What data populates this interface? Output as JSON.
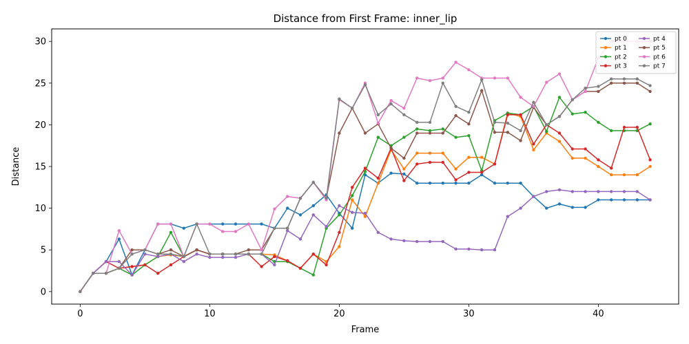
{
  "chart_data": {
    "type": "line",
    "title": "Distance from First Frame: inner_lip",
    "xlabel": "Frame",
    "ylabel": "Distance",
    "xlim": [
      -2.2,
      46.2
    ],
    "ylim": [
      -1.5,
      31.5
    ],
    "xticks": [
      0,
      10,
      20,
      30,
      40
    ],
    "yticks": [
      0,
      5,
      10,
      15,
      20,
      25,
      30
    ],
    "grid": false,
    "legend": {
      "position": "top-right",
      "columns": 2
    },
    "x": [
      0,
      1,
      2,
      3,
      4,
      5,
      6,
      7,
      8,
      9,
      10,
      11,
      12,
      13,
      14,
      15,
      16,
      17,
      18,
      19,
      20,
      21,
      22,
      23,
      24,
      25,
      26,
      27,
      28,
      29,
      30,
      31,
      32,
      33,
      34,
      35,
      36,
      37,
      38,
      39,
      40,
      41,
      42,
      43,
      44
    ],
    "series": [
      {
        "name": "pt 0",
        "color": "#1f77b4",
        "values": [
          0,
          2.2,
          3.6,
          6.3,
          2.0,
          5.0,
          8.1,
          8.1,
          7.6,
          8.1,
          8.1,
          8.1,
          8.1,
          8.1,
          8.1,
          7.6,
          10.0,
          9.2,
          10.3,
          11.6,
          9.4,
          7.6,
          14.0,
          13.0,
          14.2,
          14.1,
          13.0,
          13.0,
          13.0,
          13.0,
          13.0,
          14.0,
          13.0,
          13.0,
          13.0,
          11.4,
          10.0,
          10.5,
          10.1,
          10.1,
          11.0,
          11.0,
          11.0,
          11.0,
          11.0
        ]
      },
      {
        "name": "pt 1",
        "color": "#ff7f0e",
        "values": [
          0,
          2.2,
          2.2,
          2.8,
          3.0,
          3.2,
          4.2,
          4.4,
          4.2,
          5.0,
          4.5,
          4.5,
          4.5,
          4.5,
          4.5,
          4.4,
          3.7,
          2.8,
          4.5,
          3.6,
          5.4,
          11.0,
          9.0,
          13.0,
          17.0,
          14.7,
          16.6,
          16.6,
          16.6,
          14.7,
          16.1,
          16.1,
          15.3,
          21.4,
          21.0,
          17.0,
          19.0,
          18.0,
          16.0,
          16.0,
          15.0,
          14.0,
          14.0,
          14.0,
          15.0
        ]
      },
      {
        "name": "pt 2",
        "color": "#2ca02c",
        "values": [
          0,
          2.2,
          2.2,
          2.8,
          2.0,
          3.2,
          4.2,
          7.1,
          4.2,
          5.0,
          4.5,
          4.5,
          4.5,
          4.5,
          4.5,
          3.6,
          3.6,
          2.8,
          2.0,
          7.6,
          9.2,
          11.5,
          14.4,
          18.5,
          17.5,
          18.5,
          19.5,
          19.3,
          19.5,
          18.5,
          18.7,
          14.5,
          20.5,
          21.4,
          21.2,
          22.2,
          19.2,
          23.3,
          21.3,
          21.5,
          20.3,
          19.3,
          19.3,
          19.3,
          20.1
        ]
      },
      {
        "name": "pt 3",
        "color": "#d62728",
        "values": [
          0,
          2.2,
          3.6,
          2.8,
          3.0,
          3.2,
          2.2,
          3.2,
          4.2,
          5.0,
          4.5,
          4.5,
          4.5,
          4.5,
          3.0,
          4.2,
          3.7,
          2.8,
          4.5,
          3.2,
          7.1,
          12.5,
          14.8,
          13.6,
          17.2,
          13.3,
          15.3,
          15.5,
          15.5,
          13.4,
          14.3,
          14.3,
          15.3,
          21.2,
          21.2,
          17.7,
          20.0,
          19.0,
          17.1,
          17.1,
          15.8,
          14.8,
          19.7,
          19.7,
          15.8
        ]
      },
      {
        "name": "pt 4",
        "color": "#9467bd",
        "values": [
          0,
          2.2,
          3.6,
          3.6,
          2.0,
          4.5,
          4.2,
          4.5,
          3.6,
          4.5,
          4.1,
          4.1,
          4.1,
          4.5,
          4.5,
          3.2,
          7.3,
          6.3,
          9.2,
          7.8,
          10.3,
          9.5,
          9.4,
          7.1,
          6.3,
          6.1,
          6.0,
          6.0,
          6.0,
          5.1,
          5.1,
          5.0,
          5.0,
          9.0,
          10.0,
          11.4,
          12.0,
          12.2,
          12.0,
          12.0,
          12.0,
          12.0,
          12.0,
          12.0,
          11.0
        ]
      },
      {
        "name": "pt 5",
        "color": "#8c564b",
        "values": [
          0,
          2.2,
          2.2,
          2.8,
          5.0,
          5.0,
          4.5,
          5.0,
          4.2,
          5.0,
          4.5,
          4.5,
          4.5,
          5.0,
          5.0,
          7.6,
          7.6,
          11.2,
          13.1,
          11.2,
          19.0,
          22.0,
          19.0,
          20.1,
          17.2,
          16.0,
          19.0,
          19.0,
          19.0,
          21.1,
          20.1,
          24.1,
          19.1,
          19.1,
          18.1,
          22.1,
          20.0,
          21.0,
          23.0,
          24.0,
          24.0,
          25.0,
          25.0,
          25.0,
          24.0
        ]
      },
      {
        "name": "pt 6",
        "color": "#e377c2",
        "values": [
          0,
          2.2,
          2.2,
          7.3,
          4.5,
          5.0,
          8.1,
          8.1,
          4.2,
          8.1,
          8.1,
          7.2,
          7.2,
          8.1,
          5.0,
          9.9,
          11.4,
          11.2,
          13.1,
          11.0,
          23.0,
          22.0,
          25.0,
          20.2,
          22.9,
          22.0,
          25.6,
          25.3,
          25.6,
          27.5,
          26.6,
          25.6,
          25.6,
          25.6,
          23.3,
          22.2,
          25.1,
          26.1,
          23.0,
          24.0,
          28.0,
          30.0,
          30.0,
          30.0,
          30.0
        ]
      },
      {
        "name": "pt 7",
        "color": "#7f7f7f",
        "values": [
          0,
          2.2,
          2.2,
          2.8,
          4.5,
          5.0,
          4.5,
          4.5,
          4.2,
          8.1,
          4.5,
          4.5,
          4.5,
          4.5,
          4.5,
          7.6,
          7.6,
          11.2,
          13.1,
          11.2,
          23.1,
          22.0,
          24.8,
          21.2,
          22.5,
          21.2,
          20.3,
          20.3,
          25.0,
          22.2,
          21.5,
          25.4,
          20.3,
          20.2,
          19.3,
          22.7,
          20.0,
          21.0,
          23.0,
          24.4,
          24.6,
          25.5,
          25.5,
          25.5,
          24.7
        ]
      }
    ]
  }
}
